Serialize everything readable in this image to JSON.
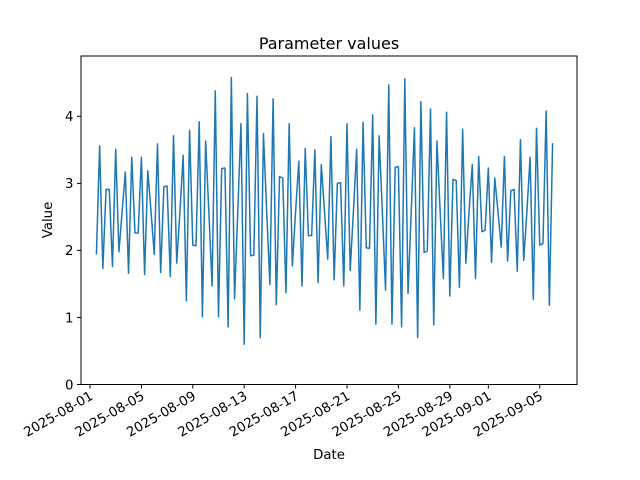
{
  "figure": {
    "title": "Parameter values",
    "xlabel": "Date",
    "ylabel": "Value",
    "background_color": "#ffffff",
    "axes_edge_color": "#000000",
    "tick_color": "#000000"
  },
  "chart_data": {
    "type": "line",
    "series_name": "Parameter values",
    "series_color": "#1f77b4",
    "grid": false,
    "legend_position": "none",
    "x_start": "2025-08-01T12:00",
    "x_step_days": 0.25,
    "values": [
      1.94,
      3.56,
      1.73,
      2.91,
      2.91,
      1.76,
      3.51,
      1.98,
      2.58,
      3.17,
      1.66,
      3.39,
      2.26,
      2.26,
      3.39,
      1.64,
      3.19,
      2.58,
      1.94,
      3.59,
      1.67,
      2.95,
      2.96,
      1.61,
      3.71,
      1.81,
      2.58,
      3.42,
      1.25,
      3.79,
      2.08,
      2.07,
      3.92,
      1.01,
      3.63,
      2.58,
      1.47,
      4.38,
      1.01,
      3.22,
      3.23,
      0.86,
      4.58,
      1.28,
      2.58,
      3.89,
      0.6,
      4.34,
      1.92,
      1.93,
      4.3,
      0.7,
      3.74,
      2.58,
      1.49,
      4.26,
      1.19,
      3.1,
      3.08,
      1.37,
      3.89,
      1.77,
      2.58,
      3.33,
      1.47,
      3.52,
      2.22,
      2.22,
      3.5,
      1.52,
      3.28,
      2.58,
      1.87,
      3.7,
      1.56,
      3.0,
      3.01,
      1.47,
      3.89,
      1.7,
      2.58,
      3.51,
      1.11,
      3.91,
      2.04,
      2.03,
      4.02,
      0.9,
      3.71,
      2.58,
      1.41,
      4.47,
      0.9,
      3.24,
      3.25,
      0.86,
      4.56,
      1.36,
      2.58,
      3.83,
      0.7,
      4.22,
      1.97,
      1.99,
      4.11,
      0.89,
      3.63,
      2.58,
      1.58,
      4.06,
      1.32,
      3.06,
      3.04,
      1.45,
      3.81,
      1.81,
      2.58,
      3.28,
      1.58,
      3.4,
      2.28,
      2.3,
      3.23,
      1.82,
      3.08,
      2.58,
      2.05,
      3.4,
      1.84,
      2.89,
      2.91,
      1.69,
      3.65,
      1.85,
      2.58,
      3.39,
      1.27,
      3.82,
      2.08,
      2.1,
      4.08,
      1.18,
      3.6
    ],
    "x_ticks": [
      {
        "label": "2025-08-01",
        "day_offset": -0.5
      },
      {
        "label": "2025-08-05",
        "day_offset": 3.5
      },
      {
        "label": "2025-08-09",
        "day_offset": 7.5
      },
      {
        "label": "2025-08-13",
        "day_offset": 11.5
      },
      {
        "label": "2025-08-17",
        "day_offset": 15.5
      },
      {
        "label": "2025-08-21",
        "day_offset": 19.5
      },
      {
        "label": "2025-08-25",
        "day_offset": 23.5
      },
      {
        "label": "2025-08-29",
        "day_offset": 27.5
      },
      {
        "label": "2025-09-01",
        "day_offset": 30.5
      },
      {
        "label": "2025-09-05",
        "day_offset": 34.5
      }
    ],
    "x_tick_rotation_deg": 30,
    "y_ticks": [
      0,
      1,
      2,
      3,
      4
    ],
    "ylim": [
      0,
      4.9
    ],
    "xlim_day_offsets": [
      -1.2,
      37.4
    ]
  }
}
